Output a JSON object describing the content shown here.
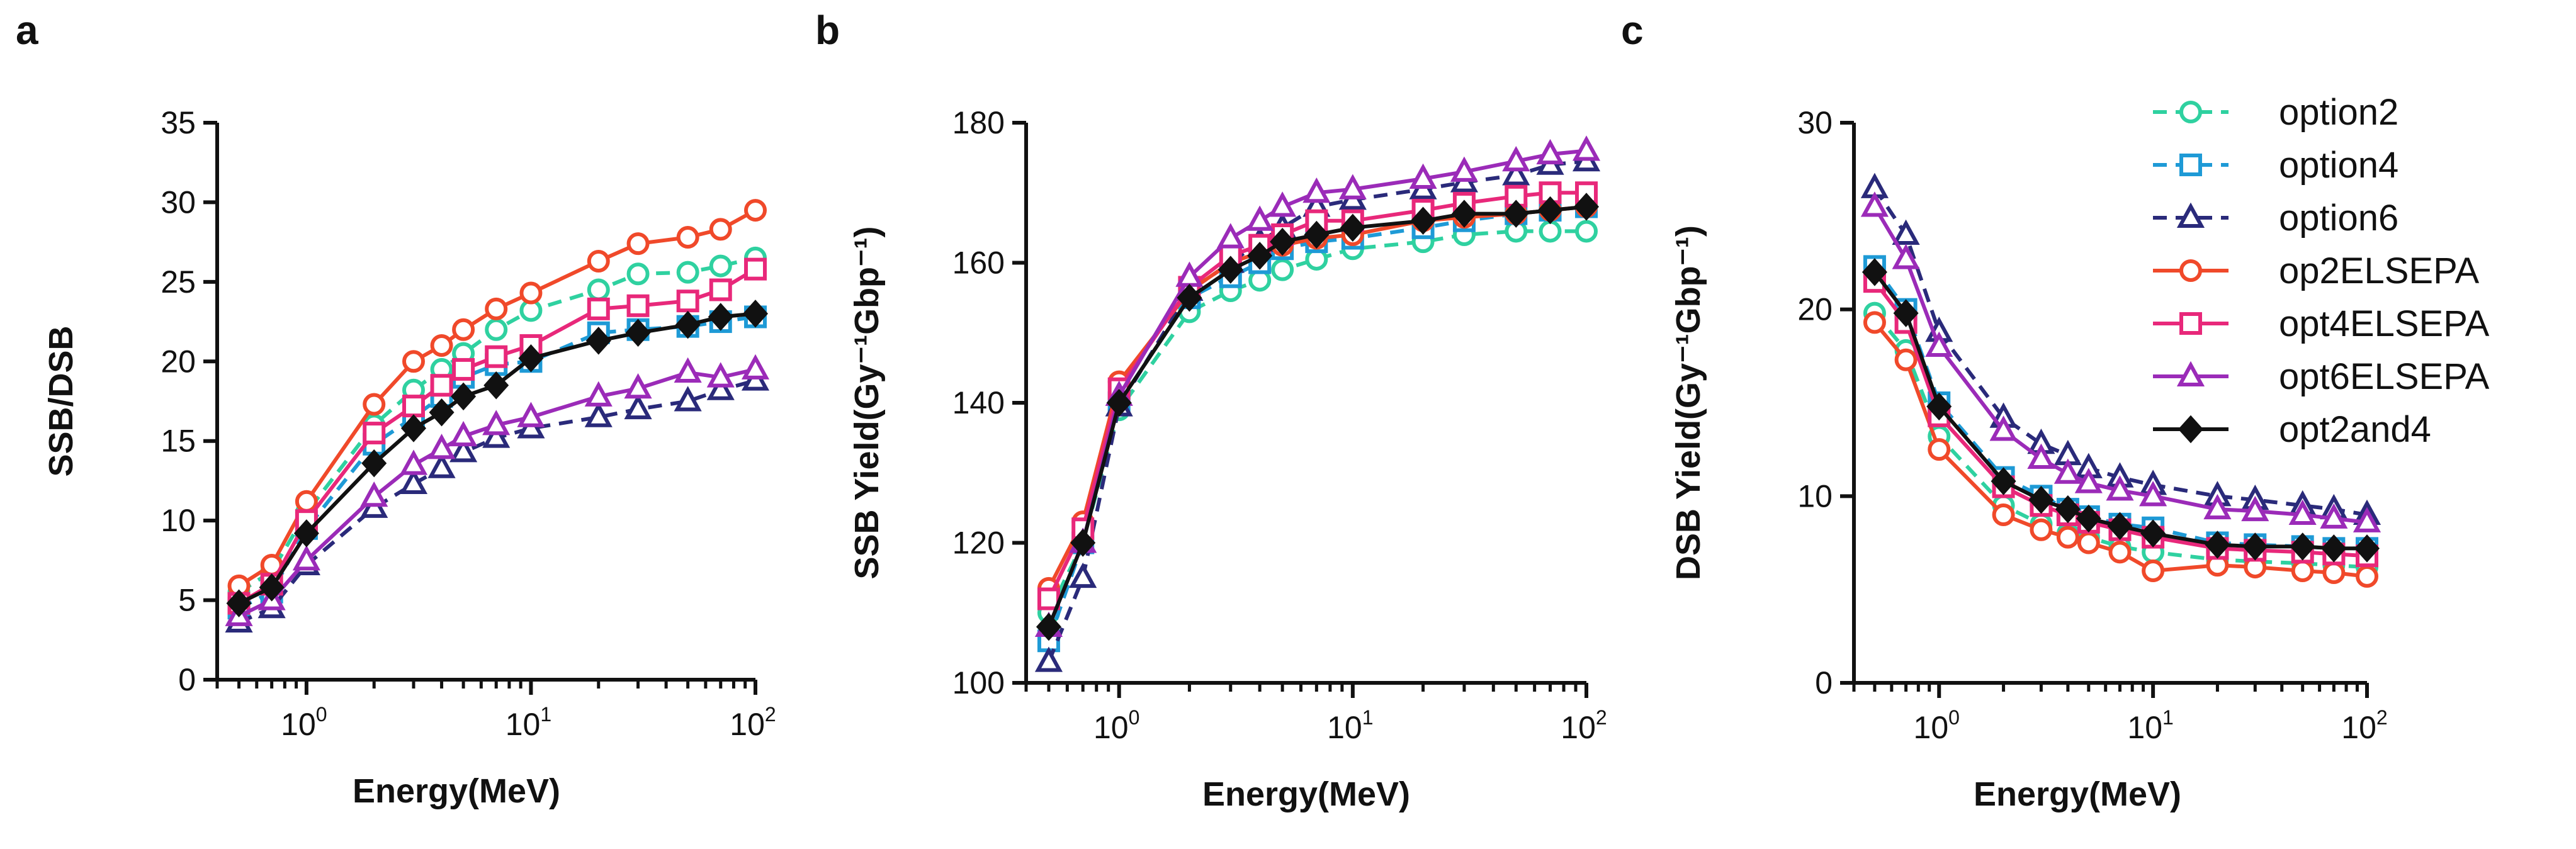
{
  "colors": {
    "option2": "#2fd1a0",
    "option4": "#1e9ad6",
    "option6": "#2a2a7a",
    "op2ELSEPA": "#f0492a",
    "opt4ELSEPA": "#e8287a",
    "opt6ELSEPA": "#9b2bb8",
    "opt2and4": "#111111"
  },
  "legend": [
    {
      "name": "option2",
      "marker": "circle",
      "dashed": true
    },
    {
      "name": "option4",
      "marker": "square",
      "dashed": true
    },
    {
      "name": "option6",
      "marker": "triangle",
      "dashed": true
    },
    {
      "name": "op2ELSEPA",
      "marker": "circle",
      "dashed": false
    },
    {
      "name": "opt4ELSEPA",
      "marker": "square",
      "dashed": false
    },
    {
      "name": "opt6ELSEPA",
      "marker": "triangle",
      "dashed": false
    },
    {
      "name": "opt2and4",
      "marker": "diamond",
      "dashed": false
    }
  ],
  "chart_data": [
    {
      "panel": "a",
      "type": "line",
      "xlabel": "Energy(MeV)",
      "ylabel": "SSB/DSB",
      "xscale": "log",
      "xlim": [
        0.4,
        100
      ],
      "ylim": [
        0,
        35
      ],
      "yticks": [
        0,
        5,
        10,
        15,
        20,
        25,
        30,
        35
      ],
      "x": [
        0.5,
        0.7,
        1,
        2,
        3,
        4,
        5,
        7,
        10,
        20,
        30,
        50,
        70,
        100
      ],
      "series": [
        {
          "name": "option2",
          "values": [
            5.5,
            6.8,
            10.5,
            16.0,
            18.2,
            19.5,
            20.5,
            22.0,
            23.2,
            24.5,
            25.5,
            25.6,
            26.0,
            26.5
          ]
        },
        {
          "name": "option4",
          "values": [
            4.5,
            5.5,
            9.5,
            14.8,
            16.5,
            17.8,
            19.0,
            19.8,
            20.0,
            21.8,
            22.0,
            22.2,
            22.5,
            22.8
          ]
        },
        {
          "name": "option6",
          "values": [
            3.6,
            4.5,
            7.2,
            10.8,
            12.3,
            13.3,
            14.3,
            15.2,
            15.8,
            16.5,
            17.0,
            17.5,
            18.2,
            18.8
          ]
        },
        {
          "name": "op2ELSEPA",
          "values": [
            5.9,
            7.2,
            11.2,
            17.3,
            20.0,
            21.0,
            22.0,
            23.3,
            24.3,
            26.3,
            27.4,
            27.8,
            28.3,
            29.5
          ]
        },
        {
          "name": "opt4ELSEPA",
          "values": [
            4.8,
            6.0,
            10.0,
            15.5,
            17.2,
            18.5,
            19.5,
            20.3,
            21.0,
            23.3,
            23.5,
            23.8,
            24.5,
            25.8
          ]
        },
        {
          "name": "opt6ELSEPA",
          "values": [
            4.0,
            5.0,
            7.5,
            11.5,
            13.5,
            14.5,
            15.3,
            16.0,
            16.5,
            17.8,
            18.3,
            19.3,
            19.0,
            19.5
          ]
        },
        {
          "name": "opt2and4",
          "values": [
            4.8,
            5.8,
            9.2,
            13.6,
            15.8,
            16.8,
            17.8,
            18.5,
            20.2,
            21.3,
            21.8,
            22.3,
            22.8,
            23.0
          ]
        }
      ]
    },
    {
      "panel": "b",
      "type": "line",
      "xlabel": "Energy(MeV)",
      "ylabel": "SSB Yield(Gy⁻¹Gbp⁻¹)",
      "xscale": "log",
      "xlim": [
        0.4,
        100
      ],
      "ylim": [
        100,
        180
      ],
      "yticks": [
        100,
        120,
        140,
        160,
        180
      ],
      "x": [
        0.5,
        0.7,
        1,
        2,
        3,
        4,
        5,
        7,
        10,
        20,
        30,
        50,
        70,
        100
      ],
      "series": [
        {
          "name": "option2",
          "values": [
            110,
            120,
            139,
            153,
            156,
            157.5,
            159,
            160.5,
            162,
            163,
            164,
            164.5,
            164.5,
            164.5
          ]
        },
        {
          "name": "option4",
          "values": [
            106,
            120,
            140,
            155,
            158,
            160,
            162,
            163,
            163.5,
            165,
            166,
            167,
            167.5,
            168
          ]
        },
        {
          "name": "option6",
          "values": [
            103,
            115,
            139.5,
            156,
            160,
            163,
            165,
            168,
            169,
            170.5,
            171.5,
            172.5,
            174,
            174.5
          ]
        },
        {
          "name": "op2ELSEPA",
          "values": [
            113.5,
            123,
            143,
            156,
            160,
            161.5,
            162.5,
            163.5,
            164,
            166,
            166.5,
            167,
            167.5,
            168
          ]
        },
        {
          "name": "opt4ELSEPA",
          "values": [
            112,
            122,
            142,
            156.5,
            161,
            162.5,
            164,
            166,
            166,
            167.5,
            168.5,
            169.5,
            170,
            170
          ]
        },
        {
          "name": "opt6ELSEPA",
          "values": [
            108,
            120,
            141,
            158,
            163.5,
            166,
            168,
            170,
            170.5,
            172,
            173,
            174.5,
            175.5,
            176
          ]
        },
        {
          "name": "opt2and4",
          "values": [
            108,
            120,
            140,
            155,
            159,
            161,
            163,
            164,
            165,
            166,
            167,
            167,
            167.5,
            168
          ]
        }
      ]
    },
    {
      "panel": "c",
      "type": "line",
      "xlabel": "Energy(MeV)",
      "ylabel": "DSB Yield(Gy⁻¹Gbp⁻¹)",
      "xscale": "log",
      "xlim": [
        0.4,
        100
      ],
      "ylim": [
        0,
        30
      ],
      "yticks": [
        0,
        10,
        20,
        30
      ],
      "x": [
        0.5,
        0.7,
        1,
        2,
        3,
        4,
        5,
        7,
        10,
        20,
        30,
        50,
        70,
        100
      ],
      "series": [
        {
          "name": "option2",
          "values": [
            19.8,
            17.8,
            13.2,
            9.5,
            8.5,
            8.0,
            7.8,
            7.3,
            7.0,
            6.6,
            6.5,
            6.4,
            6.3,
            6.2
          ]
        },
        {
          "name": "option4",
          "values": [
            22.3,
            20.0,
            15.0,
            11.0,
            10.0,
            9.3,
            8.9,
            8.5,
            8.3,
            7.5,
            7.4,
            7.3,
            7.2,
            7.2
          ]
        },
        {
          "name": "option6",
          "values": [
            26.5,
            24.0,
            18.8,
            14.2,
            12.8,
            12.2,
            11.5,
            11.0,
            10.6,
            10.0,
            9.8,
            9.5,
            9.3,
            9.0
          ]
        },
        {
          "name": "op2ELSEPA",
          "values": [
            19.3,
            17.3,
            12.5,
            9.0,
            8.2,
            7.8,
            7.5,
            7.0,
            6.0,
            6.3,
            6.2,
            6.0,
            5.9,
            5.7
          ]
        },
        {
          "name": "opt4ELSEPA",
          "values": [
            21.5,
            19.3,
            14.3,
            10.5,
            9.5,
            9.0,
            8.6,
            8.2,
            7.8,
            7.2,
            7.1,
            7.0,
            6.9,
            6.8
          ]
        },
        {
          "name": "opt6ELSEPA",
          "values": [
            25.5,
            22.7,
            18.0,
            13.5,
            12.0,
            11.2,
            10.7,
            10.3,
            10.0,
            9.3,
            9.2,
            9.0,
            8.8,
            8.6
          ]
        },
        {
          "name": "opt2and4",
          "values": [
            22.0,
            19.8,
            14.8,
            10.8,
            9.8,
            9.3,
            8.8,
            8.4,
            8.0,
            7.4,
            7.3,
            7.3,
            7.2,
            7.2
          ]
        }
      ]
    }
  ]
}
